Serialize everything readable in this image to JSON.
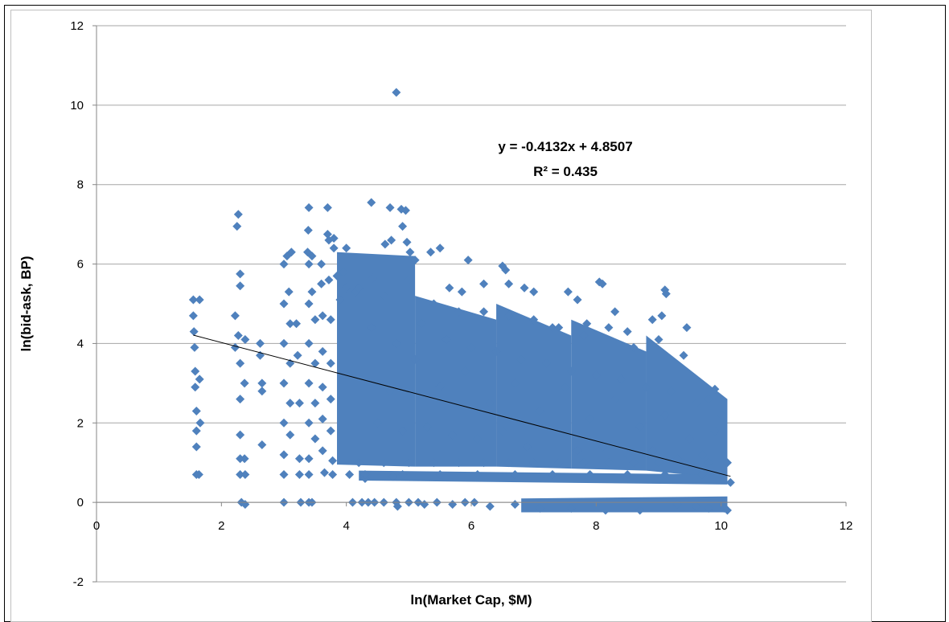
{
  "chart_data": {
    "type": "scatter",
    "title": "",
    "xlabel": "ln(Market Cap, $M)",
    "ylabel": "ln(bid-ask, BP)",
    "xlim": [
      0,
      12
    ],
    "ylim": [
      -2,
      12
    ],
    "xticks": [
      0,
      2,
      4,
      6,
      8,
      10,
      12
    ],
    "yticks": [
      -2,
      0,
      2,
      4,
      6,
      8,
      10,
      12
    ],
    "grid": "horizontal",
    "marker": "diamond",
    "marker_color": "#4F81BD",
    "trendline": {
      "slope": -0.4132,
      "intercept": 4.8507,
      "x_range": [
        1.55,
        10.15
      ],
      "color": "#000000",
      "equation": "y = -0.4132x + 4.8507",
      "r_squared": "R² = 0.435"
    },
    "series": [
      {
        "values": [
          [
            1.55,
            5.1
          ],
          [
            1.55,
            4.7
          ],
          [
            1.56,
            4.3
          ],
          [
            1.57,
            3.9
          ],
          [
            1.58,
            3.3
          ],
          [
            1.58,
            2.9
          ],
          [
            1.6,
            2.3
          ],
          [
            1.6,
            1.8
          ],
          [
            1.6,
            1.4
          ],
          [
            1.6,
            0.7
          ],
          [
            1.64,
            0.7
          ],
          [
            1.65,
            5.1
          ],
          [
            1.65,
            3.1
          ],
          [
            1.66,
            2.0
          ],
          [
            2.22,
            4.7
          ],
          [
            2.22,
            3.9
          ],
          [
            2.25,
            6.95
          ],
          [
            2.27,
            7.25
          ],
          [
            2.27,
            4.2
          ],
          [
            2.3,
            5.75
          ],
          [
            2.3,
            5.45
          ],
          [
            2.3,
            3.5
          ],
          [
            2.3,
            2.6
          ],
          [
            2.3,
            1.7
          ],
          [
            2.3,
            1.1
          ],
          [
            2.3,
            0.7
          ],
          [
            2.32,
            0.0
          ],
          [
            2.37,
            1.1
          ],
          [
            2.38,
            0.7
          ],
          [
            2.38,
            -0.05
          ],
          [
            2.38,
            4.1
          ],
          [
            2.37,
            3.0
          ],
          [
            2.62,
            4.0
          ],
          [
            2.62,
            3.7
          ],
          [
            2.65,
            3.0
          ],
          [
            2.65,
            2.8
          ],
          [
            2.65,
            1.45
          ],
          [
            3.0,
            6.0
          ],
          [
            3.0,
            5.0
          ],
          [
            3.0,
            4.0
          ],
          [
            3.0,
            3.0
          ],
          [
            3.0,
            2.0
          ],
          [
            3.0,
            1.2
          ],
          [
            3.0,
            0.7
          ],
          [
            3.0,
            0.0
          ],
          [
            3.05,
            6.2
          ],
          [
            3.08,
            5.3
          ],
          [
            3.1,
            4.5
          ],
          [
            3.1,
            3.5
          ],
          [
            3.1,
            2.5
          ],
          [
            3.1,
            1.7
          ],
          [
            3.12,
            6.3
          ],
          [
            3.2,
            4.5
          ],
          [
            3.22,
            3.7
          ],
          [
            3.25,
            2.5
          ],
          [
            3.25,
            1.1
          ],
          [
            3.25,
            0.7
          ],
          [
            3.27,
            0.0
          ],
          [
            3.38,
            6.3
          ],
          [
            3.39,
            6.85
          ],
          [
            3.4,
            7.42
          ],
          [
            3.4,
            6.0
          ],
          [
            3.4,
            5.0
          ],
          [
            3.4,
            4.0
          ],
          [
            3.4,
            3.0
          ],
          [
            3.4,
            2.0
          ],
          [
            3.4,
            1.1
          ],
          [
            3.4,
            0.7
          ],
          [
            3.4,
            0.0
          ],
          [
            3.45,
            6.2
          ],
          [
            3.45,
            5.3
          ],
          [
            3.45,
            0.0
          ],
          [
            3.5,
            4.6
          ],
          [
            3.5,
            3.5
          ],
          [
            3.5,
            2.5
          ],
          [
            3.5,
            1.6
          ],
          [
            3.6,
            6.0
          ],
          [
            3.6,
            5.5
          ],
          [
            3.62,
            4.7
          ],
          [
            3.62,
            3.8
          ],
          [
            3.62,
            2.9
          ],
          [
            3.62,
            2.1
          ],
          [
            3.62,
            1.3
          ],
          [
            3.65,
            0.75
          ],
          [
            3.7,
            7.42
          ],
          [
            3.7,
            6.75
          ],
          [
            3.72,
            6.6
          ],
          [
            3.72,
            5.6
          ],
          [
            3.75,
            4.6
          ],
          [
            3.75,
            3.5
          ],
          [
            3.75,
            2.6
          ],
          [
            3.75,
            1.8
          ],
          [
            3.78,
            1.05
          ],
          [
            3.78,
            0.7
          ],
          [
            3.8,
            6.65
          ],
          [
            3.8,
            6.4
          ],
          [
            3.85,
            5.7
          ],
          [
            3.9,
            5.1
          ],
          [
            3.95,
            5.8
          ],
          [
            4.0,
            6.4
          ],
          [
            4.0,
            5.4
          ],
          [
            4.05,
            0.7
          ],
          [
            4.1,
            0.0
          ],
          [
            4.15,
            5.3
          ],
          [
            4.25,
            0.0
          ],
          [
            4.3,
            0.6
          ],
          [
            4.35,
            0.0
          ],
          [
            4.4,
            7.55
          ],
          [
            4.42,
            5.65
          ],
          [
            4.45,
            0.0
          ],
          [
            4.5,
            5.8
          ],
          [
            4.6,
            0.0
          ],
          [
            4.62,
            6.5
          ],
          [
            4.7,
            7.42
          ],
          [
            4.72,
            6.6
          ],
          [
            4.75,
            0.65
          ],
          [
            4.8,
            10.32
          ],
          [
            4.8,
            0.0
          ],
          [
            4.82,
            -0.1
          ],
          [
            4.88,
            7.38
          ],
          [
            4.9,
            6.95
          ],
          [
            4.95,
            7.35
          ],
          [
            4.97,
            6.55
          ],
          [
            5.0,
            0.0
          ],
          [
            5.02,
            6.3
          ],
          [
            5.1,
            6.1
          ],
          [
            5.15,
            0.0
          ],
          [
            5.25,
            -0.05
          ],
          [
            5.35,
            6.3
          ],
          [
            5.45,
            0.0
          ],
          [
            5.5,
            6.4
          ],
          [
            5.65,
            5.4
          ],
          [
            5.7,
            -0.05
          ],
          [
            5.85,
            5.3
          ],
          [
            5.9,
            0.0
          ],
          [
            5.95,
            6.1
          ],
          [
            6.05,
            0.0
          ],
          [
            6.2,
            5.5
          ],
          [
            6.3,
            -0.1
          ],
          [
            6.5,
            5.95
          ],
          [
            6.55,
            5.85
          ],
          [
            6.6,
            5.5
          ],
          [
            6.7,
            -0.05
          ],
          [
            6.85,
            5.4
          ],
          [
            7.0,
            5.3
          ],
          [
            7.1,
            -0.15
          ],
          [
            7.3,
            4.4
          ],
          [
            7.55,
            5.3
          ],
          [
            7.6,
            -0.15
          ],
          [
            7.7,
            5.1
          ],
          [
            7.85,
            4.5
          ],
          [
            8.05,
            5.55
          ],
          [
            8.1,
            5.5
          ],
          [
            8.15,
            -0.2
          ],
          [
            8.3,
            4.8
          ],
          [
            8.5,
            4.3
          ],
          [
            8.7,
            -0.2
          ],
          [
            8.9,
            4.6
          ],
          [
            9.05,
            4.7
          ],
          [
            9.1,
            5.35
          ],
          [
            9.12,
            5.25
          ],
          [
            9.3,
            -0.05
          ],
          [
            9.45,
            4.4
          ],
          [
            9.6,
            -0.1
          ],
          [
            9.8,
            -0.15
          ],
          [
            9.9,
            2.85
          ],
          [
            10.05,
            -0.15
          ],
          [
            10.1,
            -0.2
          ],
          [
            10.15,
            0.5
          ],
          [
            4.2,
            1.0
          ],
          [
            4.6,
            1.0
          ],
          [
            5.0,
            1.0
          ],
          [
            5.4,
            1.0
          ],
          [
            5.8,
            1.0
          ],
          [
            6.2,
            1.0
          ],
          [
            6.6,
            1.0
          ],
          [
            7.0,
            1.0
          ],
          [
            7.4,
            1.0
          ],
          [
            7.8,
            1.0
          ],
          [
            8.2,
            1.0
          ],
          [
            8.6,
            1.0
          ],
          [
            9.0,
            1.0
          ],
          [
            9.4,
            1.0
          ],
          [
            9.8,
            1.0
          ],
          [
            4.3,
            0.7
          ],
          [
            4.9,
            0.7
          ],
          [
            5.5,
            0.7
          ],
          [
            6.1,
            0.7
          ],
          [
            6.7,
            0.7
          ],
          [
            7.3,
            0.7
          ],
          [
            7.9,
            0.7
          ],
          [
            8.5,
            0.7
          ],
          [
            9.1,
            0.7
          ],
          [
            9.7,
            0.7
          ],
          [
            4.2,
            5.4
          ],
          [
            4.6,
            5.2
          ],
          [
            5.0,
            5.6
          ],
          [
            5.4,
            5.0
          ],
          [
            5.8,
            4.8
          ],
          [
            6.2,
            4.8
          ],
          [
            6.6,
            4.7
          ],
          [
            7.0,
            4.6
          ],
          [
            7.4,
            4.4
          ],
          [
            7.8,
            4.2
          ],
          [
            8.2,
            4.4
          ],
          [
            8.6,
            3.9
          ],
          [
            9.0,
            4.1
          ],
          [
            9.4,
            3.7
          ],
          [
            9.8,
            2.6
          ],
          [
            4.3,
            3.2
          ],
          [
            4.7,
            2.8
          ],
          [
            5.1,
            3.6
          ],
          [
            5.5,
            2.9
          ],
          [
            5.9,
            3.3
          ],
          [
            6.3,
            2.5
          ],
          [
            6.7,
            3.0
          ],
          [
            7.1,
            2.3
          ],
          [
            7.5,
            2.9
          ],
          [
            7.9,
            2.1
          ],
          [
            8.3,
            2.6
          ],
          [
            8.7,
            1.9
          ],
          [
            9.1,
            2.2
          ],
          [
            9.5,
            1.6
          ],
          [
            9.9,
            1.8
          ],
          [
            4.4,
            4.4
          ],
          [
            4.8,
            4.0
          ],
          [
            5.2,
            4.5
          ],
          [
            5.6,
            4.1
          ],
          [
            6.0,
            3.9
          ],
          [
            6.4,
            3.8
          ],
          [
            6.8,
            3.6
          ],
          [
            7.2,
            3.5
          ],
          [
            7.6,
            3.3
          ],
          [
            8.0,
            3.2
          ],
          [
            8.4,
            3.1
          ],
          [
            8.8,
            2.9
          ],
          [
            9.2,
            2.8
          ],
          [
            9.6,
            2.5
          ],
          [
            10.0,
            2.2
          ],
          [
            4.5,
            2.0
          ],
          [
            4.9,
            1.8
          ],
          [
            5.3,
            1.9
          ],
          [
            5.7,
            1.7
          ],
          [
            6.1,
            1.6
          ],
          [
            6.5,
            1.8
          ],
          [
            6.9,
            1.4
          ],
          [
            7.3,
            1.5
          ],
          [
            7.7,
            1.3
          ],
          [
            8.1,
            1.4
          ],
          [
            8.5,
            1.2
          ],
          [
            8.9,
            1.3
          ],
          [
            9.3,
            1.1
          ],
          [
            9.7,
            1.2
          ],
          [
            10.1,
            1.0
          ]
        ]
      }
    ],
    "dense_regions": [
      {
        "x": [
          3.85,
          5.1
        ],
        "y_low": [
          0.95,
          0.9
        ],
        "y_high": [
          6.3,
          6.2
        ]
      },
      {
        "x": [
          5.1,
          6.4
        ],
        "y_low": [
          0.9,
          0.9
        ],
        "y_high": [
          5.2,
          4.6
        ]
      },
      {
        "x": [
          6.4,
          7.6
        ],
        "y_low": [
          0.9,
          0.85
        ],
        "y_high": [
          5.0,
          4.2
        ]
      },
      {
        "x": [
          7.6,
          8.8
        ],
        "y_low": [
          0.85,
          0.8
        ],
        "y_high": [
          4.6,
          3.8
        ]
      },
      {
        "x": [
          8.8,
          10.1
        ],
        "y_low": [
          0.8,
          0.6
        ],
        "y_high": [
          4.2,
          2.6
        ]
      }
    ],
    "floor_bands": [
      {
        "x": [
          4.2,
          10.1
        ],
        "y_low": [
          0.55,
          0.45
        ],
        "y_high": [
          0.8,
          0.7
        ]
      },
      {
        "x": [
          6.8,
          10.1
        ],
        "y_low": [
          -0.25,
          -0.25
        ],
        "y_high": [
          0.1,
          0.15
        ]
      }
    ]
  }
}
